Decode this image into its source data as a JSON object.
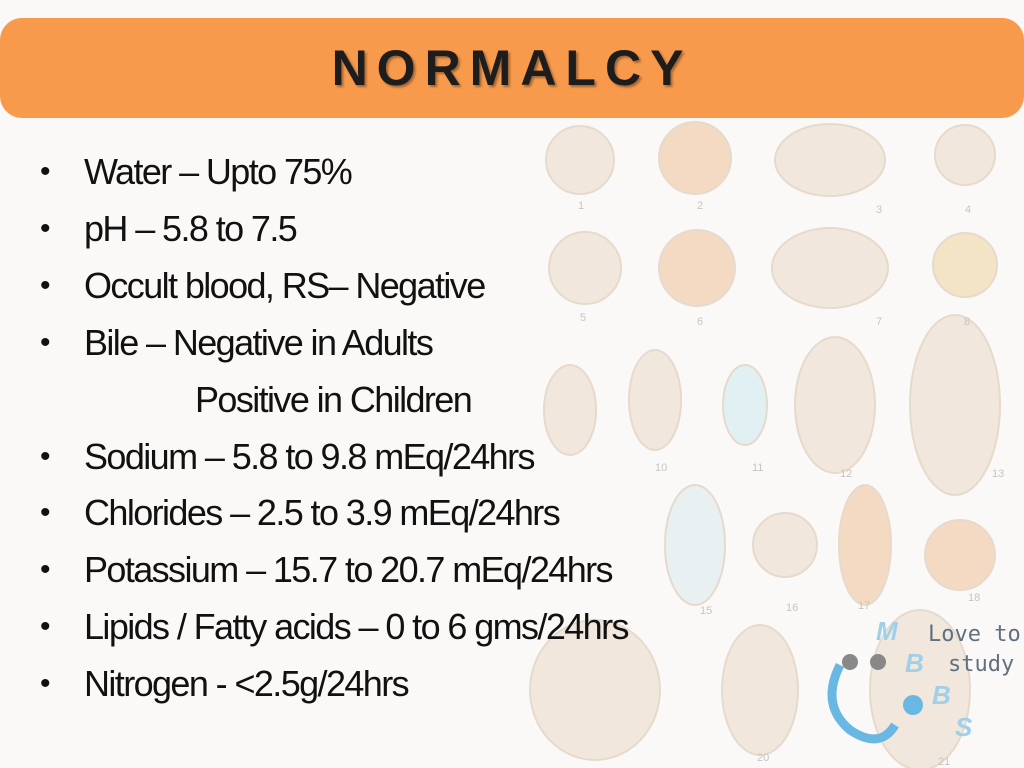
{
  "header": {
    "title": "NORMALCY"
  },
  "bullets": [
    [
      "Water – Upto 75%"
    ],
    [
      "pH – 5.8 to 7.5"
    ],
    [
      "Occult blood, RS– Negative"
    ],
    [
      "Bile – Negative in Adults",
      "Positive in Children"
    ],
    [
      "Sodium – 5.8 to 9.8 mEq/24hrs"
    ],
    [
      "Chlorides – 2.5 to 3.9 mEq/24hrs"
    ],
    [
      "Potassium – 15.7 to 20.7 mEq/24hrs"
    ],
    [
      "Lipids / Fatty acids – 0 to 6 gms/24hrs"
    ],
    [
      "Nitrogen - <2.5g/24hrs"
    ]
  ],
  "figure_labels": [
    "1",
    "2",
    "3",
    "4",
    "5",
    "6",
    "7",
    "8",
    "10",
    "11",
    "12",
    "13",
    "15",
    "16",
    "17",
    "18",
    "20",
    "21"
  ],
  "logo": {
    "letters": [
      "M",
      "B",
      "B",
      "S"
    ],
    "text": [
      "Love to",
      "study"
    ]
  }
}
